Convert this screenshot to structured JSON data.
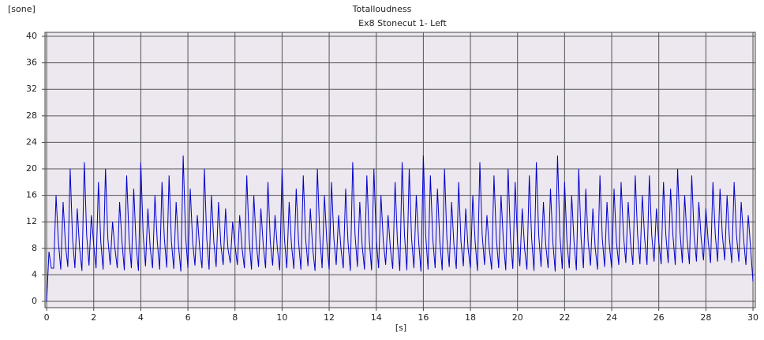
{
  "chart_data": {
    "type": "line",
    "title": "Totalloudness",
    "subtitle": "Ex8 Stonecut 1- Left",
    "ylabel": "[sone]",
    "xlabel": "[s]",
    "xlim": [
      -0.07,
      30.1
    ],
    "ylim": [
      -0.95,
      40.6
    ],
    "xticks": [
      0,
      2,
      4,
      6,
      8,
      10,
      12,
      14,
      16,
      18,
      20,
      22,
      24,
      26,
      28,
      30
    ],
    "yticks": [
      0,
      4,
      8,
      12,
      16,
      20,
      24,
      28,
      32,
      36,
      40
    ],
    "grid": true,
    "x": [
      0,
      0.1,
      0.2,
      0.3,
      0.4,
      0.5,
      0.6,
      0.7,
      0.8,
      0.9,
      1,
      1.1,
      1.2,
      1.3,
      1.4,
      1.5,
      1.6,
      1.7,
      1.8,
      1.9,
      2,
      2.1,
      2.2,
      2.3,
      2.4,
      2.5,
      2.6,
      2.7,
      2.8,
      2.9,
      3,
      3.1,
      3.2,
      3.3,
      3.4,
      3.5,
      3.6,
      3.7,
      3.8,
      3.9,
      4,
      4.1,
      4.2,
      4.3,
      4.4,
      4.5,
      4.6,
      4.7,
      4.8,
      4.9,
      5,
      5.1,
      5.2,
      5.3,
      5.4,
      5.5,
      5.6,
      5.7,
      5.8,
      5.9,
      6,
      6.1,
      6.2,
      6.3,
      6.4,
      6.5,
      6.6,
      6.7,
      6.8,
      6.9,
      7,
      7.1,
      7.2,
      7.3,
      7.4,
      7.5,
      7.6,
      7.7,
      7.8,
      7.9,
      8,
      8.1,
      8.2,
      8.3,
      8.4,
      8.5,
      8.6,
      8.7,
      8.8,
      8.9,
      9,
      9.1,
      9.2,
      9.3,
      9.4,
      9.5,
      9.6,
      9.7,
      9.8,
      9.9,
      10,
      10.1,
      10.2,
      10.3,
      10.4,
      10.5,
      10.6,
      10.7,
      10.8,
      10.9,
      11,
      11.1,
      11.2,
      11.3,
      11.4,
      11.5,
      11.6,
      11.7,
      11.8,
      11.9,
      12,
      12.1,
      12.2,
      12.3,
      12.4,
      12.5,
      12.6,
      12.7,
      12.8,
      12.9,
      13,
      13.1,
      13.2,
      13.3,
      13.4,
      13.5,
      13.6,
      13.7,
      13.8,
      13.9,
      14,
      14.1,
      14.2,
      14.3,
      14.4,
      14.5,
      14.6,
      14.7,
      14.8,
      14.9,
      15,
      15.1,
      15.2,
      15.3,
      15.4,
      15.5,
      15.6,
      15.7,
      15.8,
      15.9,
      16,
      16.1,
      16.2,
      16.3,
      16.4,
      16.5,
      16.6,
      16.7,
      16.8,
      16.9,
      17,
      17.1,
      17.2,
      17.3,
      17.4,
      17.5,
      17.6,
      17.7,
      17.8,
      17.9,
      18,
      18.1,
      18.2,
      18.3,
      18.4,
      18.5,
      18.6,
      18.7,
      18.8,
      18.9,
      19,
      19.1,
      19.2,
      19.3,
      19.4,
      19.5,
      19.6,
      19.7,
      19.8,
      19.9,
      20,
      20.1,
      20.2,
      20.3,
      20.4,
      20.5,
      20.6,
      20.7,
      20.8,
      20.9,
      21,
      21.1,
      21.2,
      21.3,
      21.4,
      21.5,
      21.6,
      21.7,
      21.8,
      21.9,
      22,
      22.1,
      22.2,
      22.3,
      22.4,
      22.5,
      22.6,
      22.7,
      22.8,
      22.9,
      23,
      23.1,
      23.2,
      23.3,
      23.4,
      23.5,
      23.6,
      23.7,
      23.8,
      23.9,
      24,
      24.1,
      24.2,
      24.3,
      24.4,
      24.5,
      24.6,
      24.7,
      24.8,
      24.9,
      25,
      25.1,
      25.2,
      25.3,
      25.4,
      25.5,
      25.6,
      25.7,
      25.8,
      25.9,
      26,
      26.1,
      26.2,
      26.3,
      26.4,
      26.5,
      26.6,
      26.7,
      26.8,
      26.9,
      27,
      27.1,
      27.2,
      27.3,
      27.4,
      27.5,
      27.6,
      27.7,
      27.8,
      27.9,
      28,
      28.1,
      28.2,
      28.3,
      28.4,
      28.5,
      28.6,
      28.7,
      28.8,
      28.9,
      29,
      29.1,
      29.2,
      29.3,
      29.4,
      29.5,
      29.6,
      29.7,
      29.8,
      29.9,
      30
    ],
    "series": [
      {
        "color": "#0000cc",
        "values": [
          0,
          7.5,
          5,
          5,
          16,
          9,
          4.8,
          15,
          8.5,
          5.2,
          20,
          9.5,
          5,
          14,
          8,
          4.6,
          21,
          10,
          5.4,
          13,
          8.5,
          5,
          18,
          9,
          4.8,
          20,
          9.5,
          5.5,
          12,
          8,
          5,
          15,
          9,
          4.7,
          19,
          9.5,
          5,
          17,
          8.5,
          4.6,
          21,
          10,
          5.3,
          14,
          8,
          5,
          16,
          9,
          4.8,
          18,
          9.5,
          5.1,
          19,
          9,
          4.9,
          15,
          8.5,
          4.5,
          22,
          10,
          5,
          17,
          9,
          5.4,
          13,
          8,
          5,
          20,
          9.5,
          4.8,
          16,
          9,
          5.2,
          15,
          8.5,
          5.5,
          14,
          8,
          5.8,
          12,
          8.5,
          5.5,
          13,
          8,
          5,
          19,
          9.5,
          4.8,
          16,
          9,
          5.2,
          14,
          8.5,
          5,
          18,
          9,
          5.4,
          13,
          8,
          4.7,
          20,
          9.5,
          5,
          15,
          8.5,
          4.9,
          17,
          9,
          4.8,
          19,
          9.5,
          5.3,
          14,
          8,
          4.6,
          20,
          10,
          5,
          16,
          9,
          4.8,
          18,
          9.5,
          5.5,
          13,
          8,
          5,
          17,
          9,
          4.6,
          21,
          10,
          5.2,
          15,
          8.5,
          4.8,
          19,
          9.5,
          4.7,
          20,
          9.5,
          5,
          16,
          9,
          5.5,
          13,
          8,
          4.9,
          18,
          9,
          4.6,
          21,
          10,
          4.7,
          20,
          9.5,
          5,
          16,
          9,
          4.5,
          22,
          10,
          4.8,
          19,
          9.5,
          5,
          17,
          9,
          4.7,
          20,
          9.5,
          5.2,
          15,
          8.5,
          4.9,
          18,
          9,
          5.3,
          14,
          8,
          5,
          16,
          9,
          4.6,
          21,
          10,
          5.5,
          13,
          8,
          4.8,
          19,
          9.5,
          5,
          16,
          9,
          4.7,
          20,
          9.5,
          4.9,
          18,
          9,
          5.3,
          14,
          8,
          4.8,
          19,
          9.5,
          4.6,
          21,
          10,
          5.2,
          15,
          8.5,
          5,
          17,
          9,
          4.5,
          22,
          10,
          4.9,
          18,
          9,
          5,
          16,
          9,
          4.7,
          20,
          9.5,
          5,
          17,
          9,
          5.4,
          14,
          8,
          4.8,
          19,
          9.5,
          5.2,
          15,
          8.5,
          5,
          17,
          9,
          5.5,
          18,
          10,
          5.8,
          15,
          9,
          5.5,
          19,
          10,
          5.6,
          16,
          9.5,
          5.5,
          19,
          10,
          6,
          14,
          9,
          5.6,
          18,
          10,
          5.8,
          17,
          10,
          5.5,
          20,
          10.5,
          5.8,
          16,
          9.5,
          5.6,
          19,
          10,
          6,
          15,
          9.5,
          6.2,
          14,
          9,
          5.8,
          18,
          10,
          6,
          17,
          10,
          6.2,
          16,
          9.5,
          5.8,
          18,
          10,
          6,
          15,
          9.5,
          5.5,
          13,
          8,
          3
        ]
      }
    ]
  }
}
